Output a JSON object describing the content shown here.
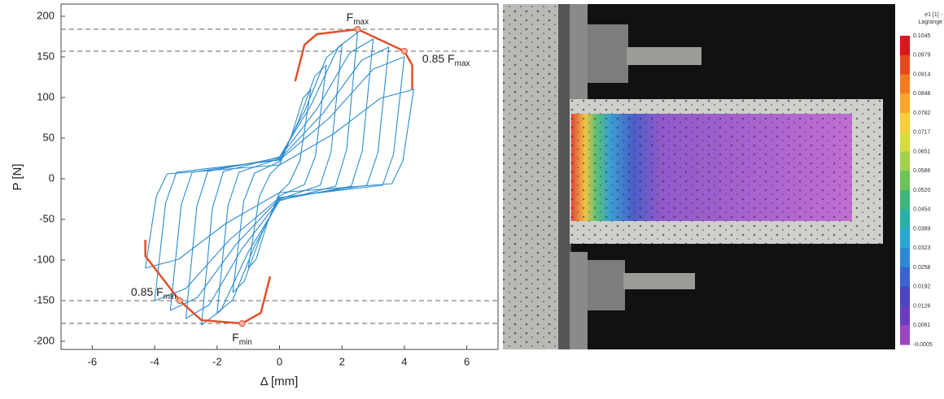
{
  "chart_data": {
    "type": "line",
    "xlabel": "Δ [mm]",
    "ylabel": "P [N]",
    "xlim": [
      -7,
      7
    ],
    "ylim": [
      -210,
      215
    ],
    "xticks": [
      -6,
      -4,
      -2,
      0,
      2,
      4,
      6
    ],
    "yticks": [
      -200,
      -150,
      -100,
      -50,
      0,
      50,
      100,
      150,
      200
    ],
    "hlines": [
      184,
      157,
      -150,
      -178
    ],
    "series": [
      {
        "color": "#2b8ccf",
        "x": [
          -1,
          -0.65,
          -0.3,
          0,
          0.4,
          0.75,
          1,
          0.65,
          0.3,
          0,
          -0.4,
          -0.75,
          -1
        ],
        "values": [
          -110,
          -22,
          6,
          17,
          55,
          99,
          110,
          22,
          -6,
          -17,
          -55,
          -99,
          -110
        ]
      },
      {
        "color": "#2b8ccf",
        "x": [
          -1.5,
          -1.15,
          -0.8,
          0,
          0.6,
          1.13,
          1.5,
          1.15,
          0.8,
          0,
          -0.6,
          -1.13,
          -1.5
        ],
        "values": [
          -140,
          -28,
          7,
          21,
          70,
          126,
          140,
          28,
          -7,
          -21,
          -70,
          -126,
          -140
        ]
      },
      {
        "color": "#2b8ccf",
        "x": [
          -2,
          -1.65,
          -1.3,
          0,
          0.8,
          1.5,
          2,
          1.65,
          1.3,
          0,
          -0.8,
          -1.5,
          -2
        ],
        "values": [
          -165,
          -33,
          8,
          25,
          83,
          149,
          165,
          33,
          -8,
          -25,
          -83,
          -149,
          -165
        ]
      },
      {
        "color": "#2b8ccf",
        "x": [
          -2.5,
          -2.15,
          -1.8,
          0,
          1,
          1.88,
          2.5,
          2.15,
          1.8,
          0,
          -1,
          -1.88,
          -2.5
        ],
        "values": [
          -180,
          -36,
          9,
          27,
          90,
          162,
          180,
          36,
          -9,
          -27,
          -90,
          -162,
          -180
        ]
      },
      {
        "color": "#2b8ccf",
        "x": [
          -3,
          -2.65,
          -2.3,
          0,
          1.2,
          2.25,
          3,
          2.65,
          2.3,
          0,
          -1.2,
          -2.25,
          -3
        ],
        "values": [
          -172,
          -34,
          9,
          26,
          86,
          155,
          172,
          34,
          -9,
          -26,
          -86,
          -155,
          -172
        ]
      },
      {
        "color": "#2b8ccf",
        "x": [
          -3.5,
          -3.15,
          -2.8,
          0,
          1.4,
          2.63,
          3.5,
          3.15,
          2.8,
          0,
          -1.4,
          -2.63,
          -3.5
        ],
        "values": [
          -162,
          -32,
          8,
          24,
          81,
          146,
          162,
          32,
          -8,
          -24,
          -81,
          -146,
          -162
        ]
      },
      {
        "color": "#2b8ccf",
        "x": [
          -4,
          -3.65,
          -3.3,
          0,
          1.6,
          3,
          4,
          3.65,
          3.3,
          0,
          -1.6,
          -3,
          -4
        ],
        "values": [
          -150,
          -30,
          8,
          23,
          75,
          135,
          150,
          30,
          -8,
          -23,
          -75,
          -135,
          -150
        ]
      },
      {
        "color": "#2b8ccf",
        "x": [
          -4.3,
          -3.95,
          -3.6,
          0,
          1.72,
          3.23,
          4.3,
          3.95,
          3.6,
          0,
          -1.72,
          -3.23,
          -4.3
        ],
        "values": [
          -110,
          -22,
          6,
          17,
          55,
          99,
          110,
          22,
          -6,
          -17,
          -55,
          -99,
          -110
        ]
      },
      {
        "color": "#e0502a",
        "x": [
          -4.3,
          -4.3,
          -3.2,
          -2.5,
          -1.2,
          -0.6,
          -0.3
        ],
        "values": [
          -75,
          -95,
          -150,
          -174,
          -178,
          -165,
          -120
        ]
      },
      {
        "color": "#e0502a",
        "x": [
          0.5,
          0.8,
          1.2,
          2.5,
          4,
          4.25,
          4.25
        ],
        "values": [
          120,
          165,
          178,
          184,
          157,
          140,
          110
        ]
      }
    ],
    "markers": [
      {
        "label": "F",
        "sub": "max",
        "x": 2.5,
        "y": 184
      },
      {
        "label": "0.85 F",
        "sub": "max",
        "x": 4,
        "y": 157
      },
      {
        "label": "0.85 F",
        "sub": "min",
        "x": -3.2,
        "y": -150
      },
      {
        "label": "F",
        "sub": "min",
        "x": -1.2,
        "y": -178
      }
    ],
    "marker_color": "#e0502a"
  },
  "colorbar": {
    "title": [
      "e1 [1] -",
      "Lagrange"
    ],
    "labels": [
      "0.1045",
      "0.0979",
      "0.0914",
      "0.0848",
      "0.0782",
      "0.0717",
      "0.0651",
      "0.0586",
      "0.0520",
      "0.0454",
      "0.0389",
      "0.0323",
      "0.0258",
      "0.0192",
      "0.0126",
      "0.0061",
      "-0.0005"
    ],
    "colors": [
      "#d7191c",
      "#e8461e",
      "#f47a22",
      "#f9a72a",
      "#f6cf35",
      "#d6dd3a",
      "#a2d04a",
      "#6cc35a",
      "#3fb77a",
      "#2bb0a8",
      "#2aa6cf",
      "#2f86d6",
      "#3b63cf",
      "#4a44c4",
      "#6a3dbf",
      "#9a46c0"
    ]
  }
}
